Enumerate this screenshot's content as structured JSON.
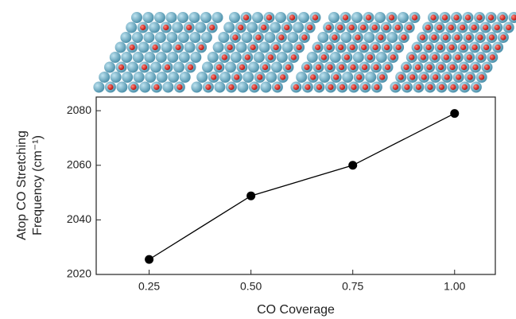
{
  "chart_data": {
    "type": "line",
    "x_label": "CO Coverage",
    "y_label": [
      "Atop CO Stretching",
      "Frequency (cm⁻¹)"
    ],
    "x": [
      0.25,
      0.5,
      0.75,
      1.0
    ],
    "series": [
      {
        "name": "Atop CO",
        "color": "#000000",
        "values": [
          2025.5,
          2048.8,
          2060,
          2079
        ]
      }
    ],
    "xlim": [
      0.12,
      1.1
    ],
    "ylim": [
      2020,
      2085
    ],
    "xticks": [
      {
        "value": 0.25,
        "label": "0.25"
      },
      {
        "value": 0.5,
        "label": "0.50"
      },
      {
        "value": 0.75,
        "label": "0.75"
      },
      {
        "value": 1.0,
        "label": "1.00"
      }
    ],
    "yticks": [
      2020,
      2040,
      2060,
      2080
    ],
    "grid": false
  }
}
